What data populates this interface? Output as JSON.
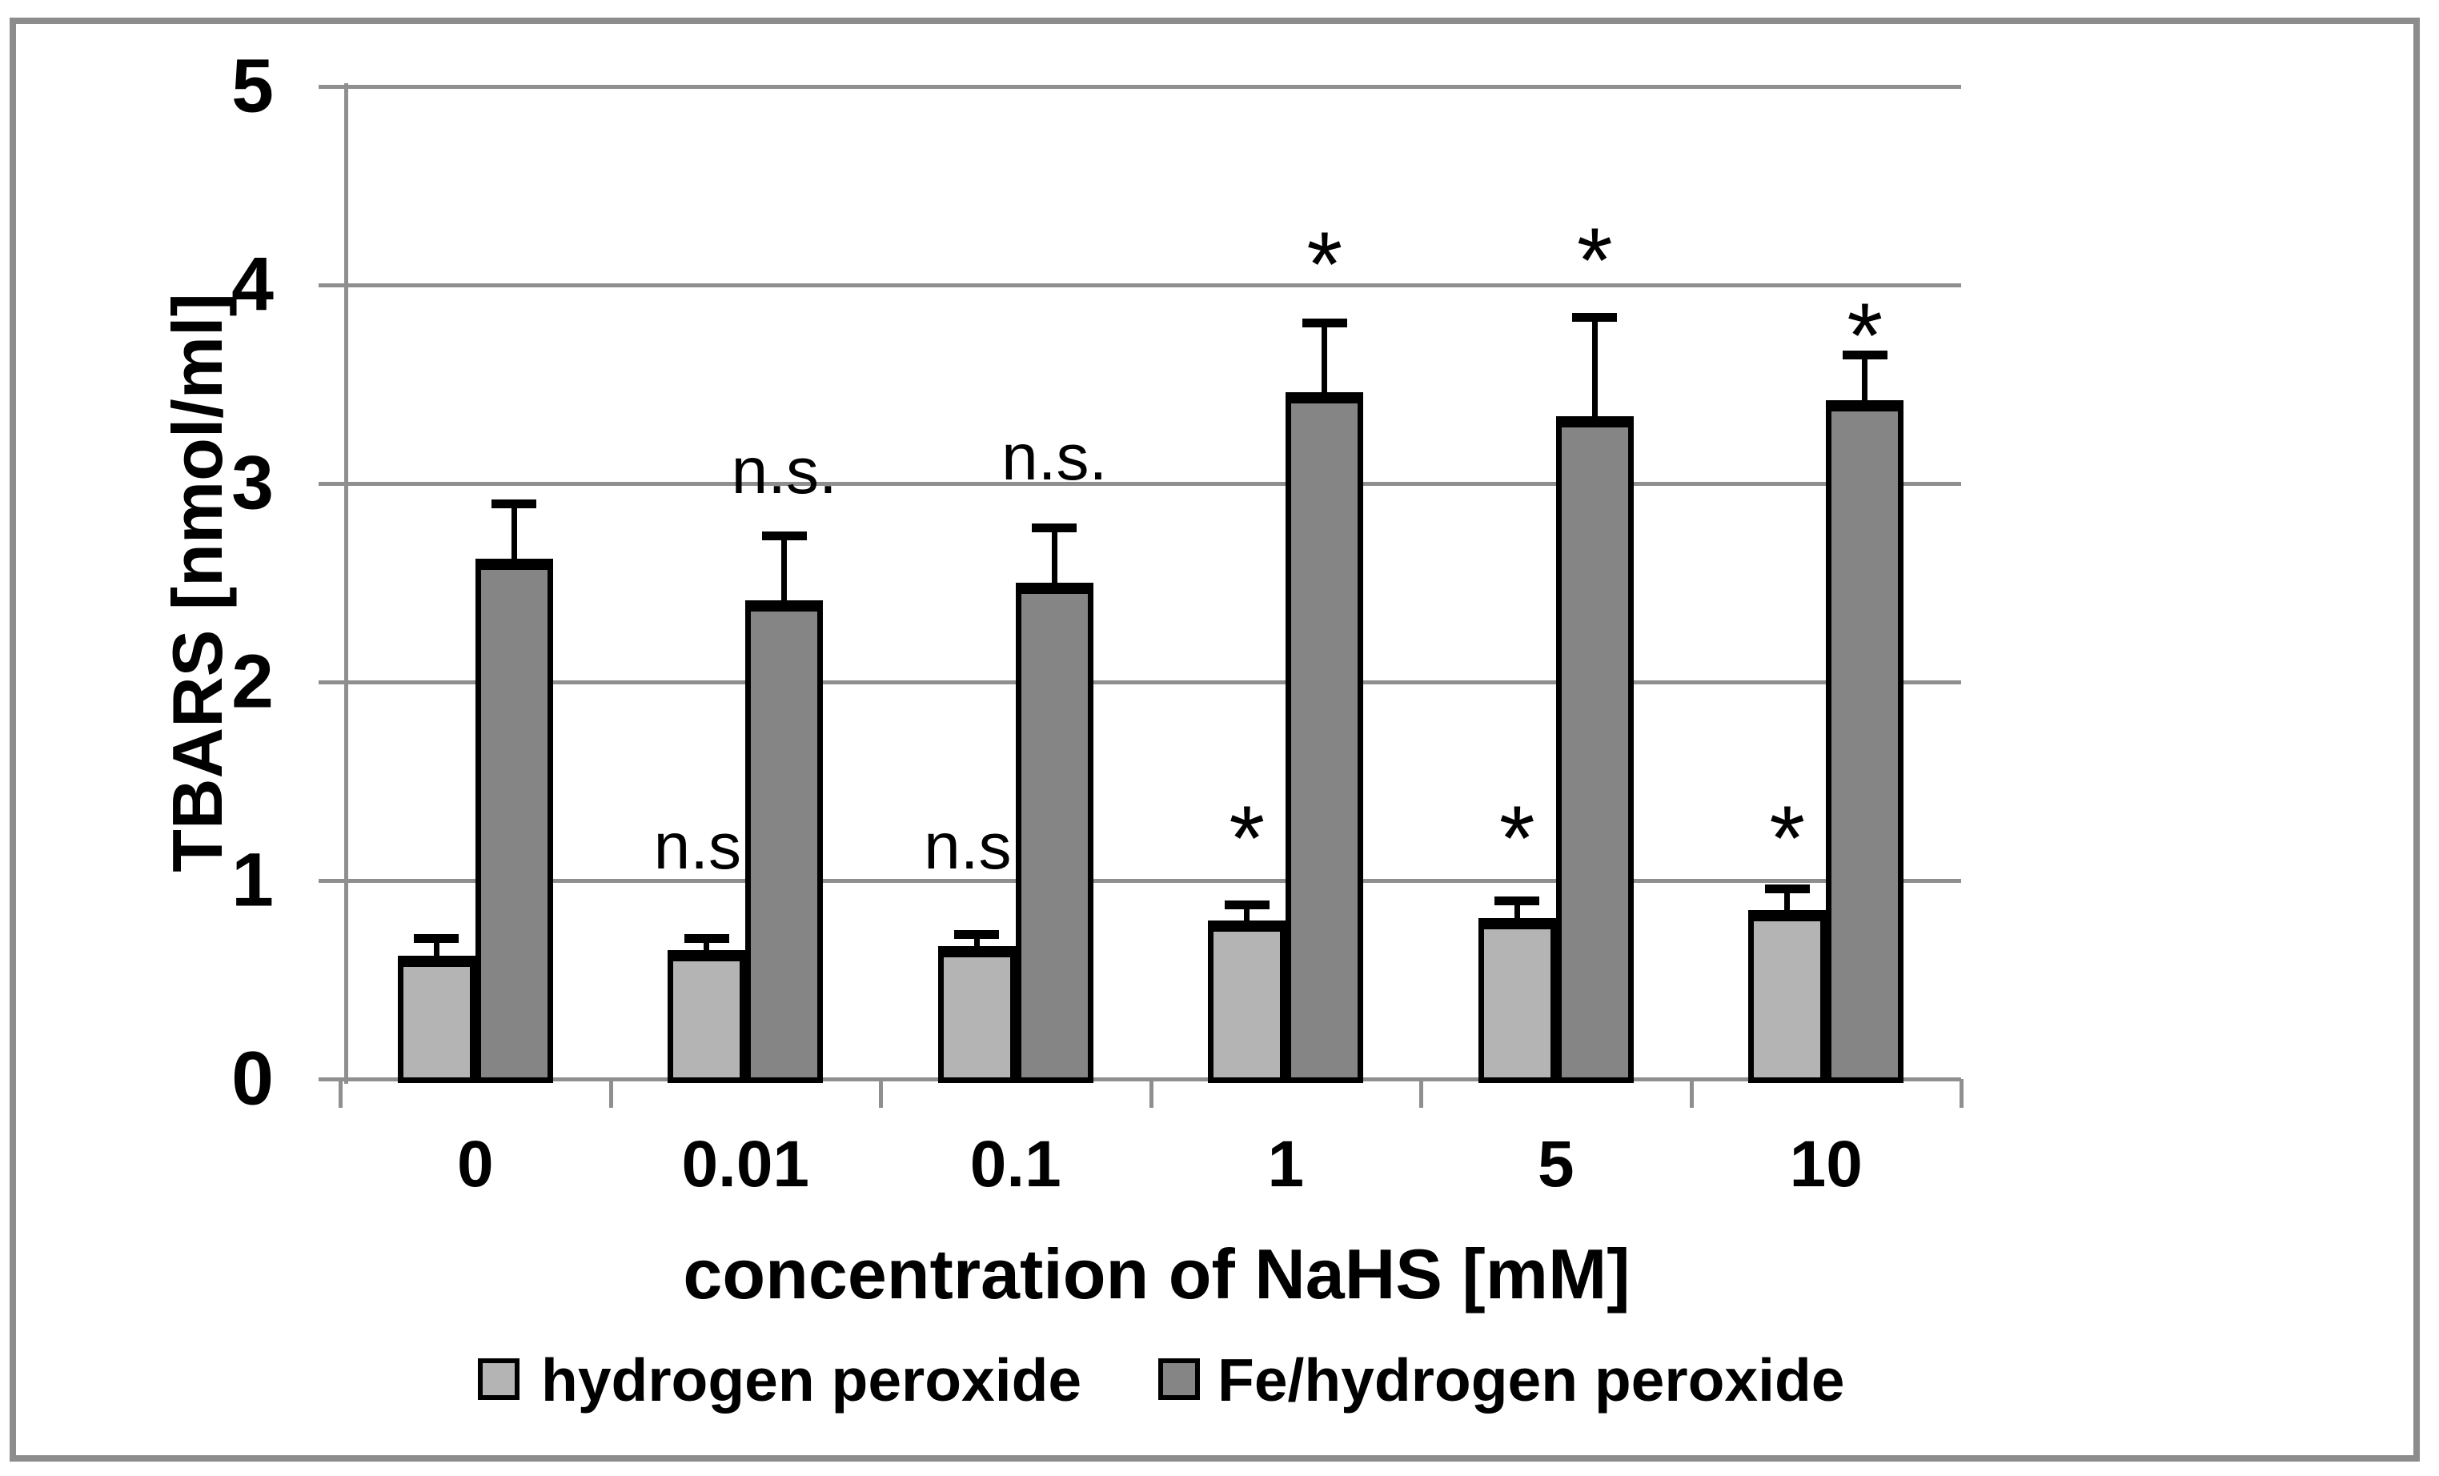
{
  "figure": {
    "background": "#ffffff",
    "frame_color": "#8c8c8c"
  },
  "chart_data": {
    "type": "bar",
    "title": "",
    "xlabel": "concentration of NaHS [mM]",
    "ylabel": "TBARS [nmol/ml]",
    "categories": [
      "0",
      "0.01",
      "0.1",
      "1",
      "5",
      "10"
    ],
    "ylim": [
      0,
      5
    ],
    "ytick_step": 1,
    "ytick_labels": [
      "0",
      "1",
      "2",
      "3",
      "4",
      "5"
    ],
    "grid": true,
    "axis_color": "#8f8f8f",
    "legend_position": "bottom",
    "series": [
      {
        "name": "hydrogen peroxide",
        "color": "#b4b4b4",
        "outline": "#000000",
        "values": [
          0.62,
          0.65,
          0.67,
          0.8,
          0.81,
          0.85
        ],
        "errors_plus": [
          0.11,
          0.08,
          0.08,
          0.1,
          0.11,
          0.13
        ],
        "annotations": [
          null,
          "n.s.",
          "n.s.",
          "*",
          "*",
          "*"
        ],
        "annotation_y": [
          null,
          1.17,
          1.17,
          1.28,
          1.28,
          1.28
        ]
      },
      {
        "name": "Fe/hydrogen peroxide",
        "color": "#858585",
        "outline": "#000000",
        "values": [
          2.62,
          2.41,
          2.5,
          3.46,
          3.34,
          3.42
        ],
        "errors_plus": [
          0.3,
          0.35,
          0.3,
          0.37,
          0.52,
          0.25
        ],
        "annotations": [
          null,
          "n.s.",
          "n.s.",
          "*",
          "*",
          "*"
        ],
        "annotation_y": [
          null,
          3.06,
          3.13,
          4.17,
          4.19,
          3.81
        ]
      }
    ]
  }
}
